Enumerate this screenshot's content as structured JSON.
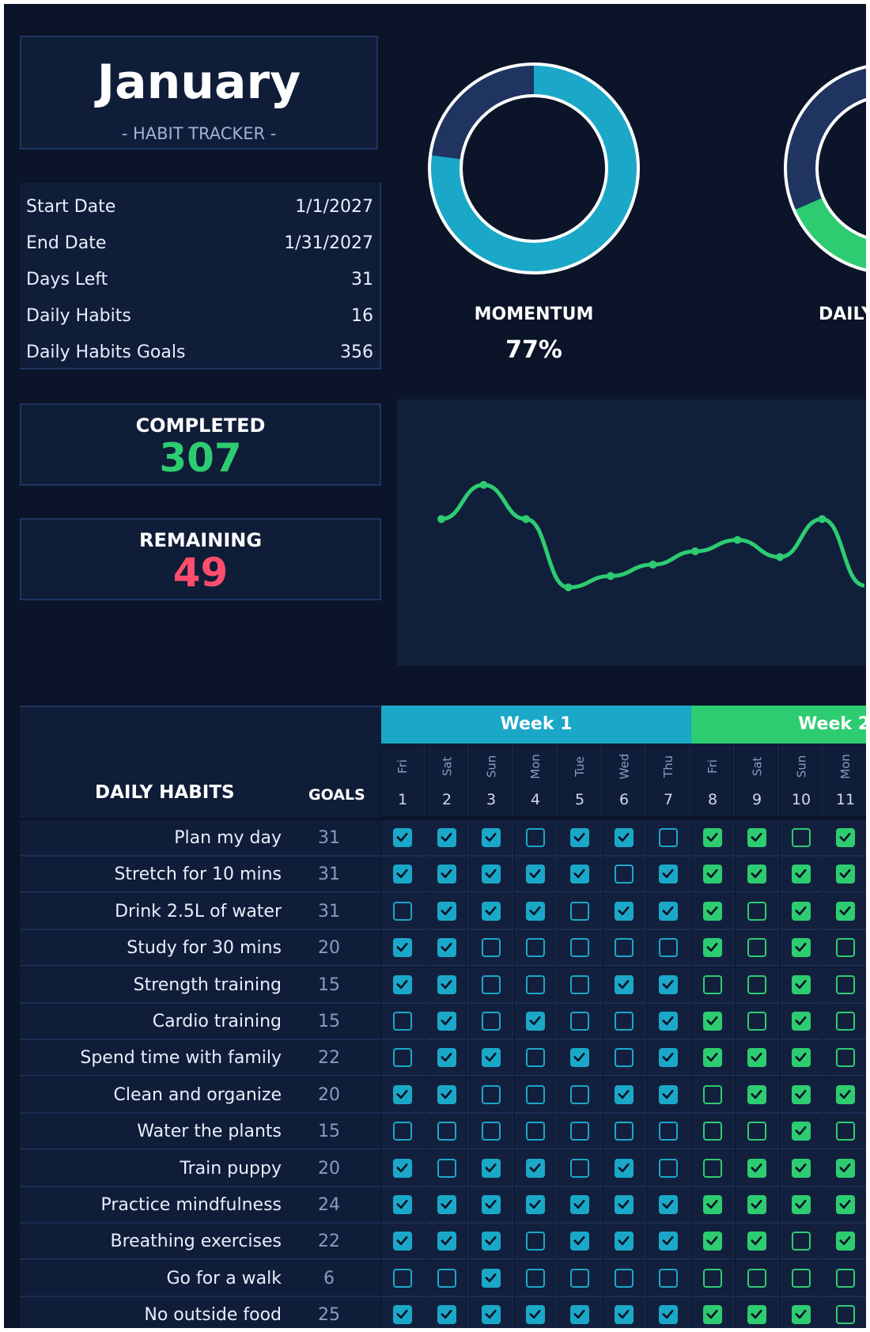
{
  "header": {
    "month": "January",
    "subtitle": "- HABIT TRACKER -"
  },
  "info": [
    {
      "label": "Start Date",
      "value": "1/1/2027"
    },
    {
      "label": "End Date",
      "value": "1/31/2027"
    },
    {
      "label": "Days Left",
      "value": "31"
    },
    {
      "label": "Daily Habits",
      "value": "16"
    },
    {
      "label": "Daily Habits Goals",
      "value": "356"
    }
  ],
  "stats": {
    "completed_label": "COMPLETED",
    "completed_value": "307",
    "remaining_label": "REMAINING",
    "remaining_value": "49"
  },
  "momentum": {
    "label": "MOMENTUM",
    "value": "77%",
    "fraction": 0.77
  },
  "daily": {
    "label": "DAILY"
  },
  "colors": {
    "bg": "#0b1428",
    "panel": "#0f1d38",
    "teal": "#1ba8c8",
    "green": "#2ecc71",
    "red": "#ff4d6d",
    "ring_track": "#1f3461"
  },
  "chart_data": {
    "type": "line",
    "x": [
      1,
      2,
      3,
      4,
      5,
      6,
      7,
      8,
      9,
      10,
      11
    ],
    "values": [
      0.62,
      0.8,
      0.62,
      0.26,
      0.32,
      0.38,
      0.45,
      0.51,
      0.42,
      0.62,
      0.27
    ],
    "grid": false
  },
  "table": {
    "habits_header": "DAILY HABITS",
    "goals_header": "GOALS",
    "weeks": [
      {
        "label": "Week 1",
        "color": "#1ba8c8"
      },
      {
        "label": "Week 2",
        "color": "#2ecc71"
      }
    ],
    "days": [
      {
        "name": "Fri",
        "num": "1",
        "week": 0
      },
      {
        "name": "Sat",
        "num": "2",
        "week": 0
      },
      {
        "name": "Sun",
        "num": "3",
        "week": 0
      },
      {
        "name": "Mon",
        "num": "4",
        "week": 0
      },
      {
        "name": "Tue",
        "num": "5",
        "week": 0
      },
      {
        "name": "Wed",
        "num": "6",
        "week": 0
      },
      {
        "name": "Thu",
        "num": "7",
        "week": 0
      },
      {
        "name": "Fri",
        "num": "8",
        "week": 1
      },
      {
        "name": "Sat",
        "num": "9",
        "week": 1
      },
      {
        "name": "Sun",
        "num": "10",
        "week": 1
      },
      {
        "name": "Mon",
        "num": "11",
        "week": 1
      }
    ],
    "habits": [
      {
        "name": "Plan my day",
        "goal": "31",
        "checks": [
          1,
          1,
          1,
          0,
          1,
          1,
          0,
          1,
          1,
          0,
          1
        ]
      },
      {
        "name": "Stretch for 10 mins",
        "goal": "31",
        "checks": [
          1,
          1,
          1,
          1,
          1,
          0,
          1,
          1,
          1,
          1,
          1
        ]
      },
      {
        "name": "Drink 2.5L of water",
        "goal": "31",
        "checks": [
          0,
          1,
          1,
          1,
          0,
          1,
          1,
          1,
          0,
          1,
          1
        ]
      },
      {
        "name": "Study for 30 mins",
        "goal": "20",
        "checks": [
          1,
          1,
          0,
          0,
          0,
          0,
          0,
          1,
          0,
          1,
          0
        ]
      },
      {
        "name": "Strength training",
        "goal": "15",
        "checks": [
          1,
          1,
          0,
          0,
          0,
          1,
          1,
          0,
          0,
          1,
          0
        ]
      },
      {
        "name": "Cardio training",
        "goal": "15",
        "checks": [
          0,
          1,
          0,
          1,
          0,
          0,
          1,
          1,
          0,
          1,
          0
        ]
      },
      {
        "name": "Spend time with family",
        "goal": "22",
        "checks": [
          0,
          1,
          1,
          0,
          1,
          0,
          1,
          1,
          1,
          1,
          0
        ]
      },
      {
        "name": "Clean and organize",
        "goal": "20",
        "checks": [
          1,
          1,
          0,
          0,
          0,
          1,
          1,
          0,
          1,
          1,
          1
        ]
      },
      {
        "name": "Water the plants",
        "goal": "15",
        "checks": [
          0,
          0,
          0,
          0,
          0,
          0,
          0,
          0,
          0,
          1,
          0
        ]
      },
      {
        "name": "Train puppy",
        "goal": "20",
        "checks": [
          1,
          0,
          1,
          1,
          0,
          1,
          0,
          0,
          1,
          1,
          1
        ]
      },
      {
        "name": "Practice mindfulness",
        "goal": "24",
        "checks": [
          1,
          1,
          1,
          1,
          1,
          1,
          1,
          1,
          1,
          1,
          1
        ]
      },
      {
        "name": "Breathing exercises",
        "goal": "22",
        "checks": [
          1,
          1,
          1,
          0,
          1,
          1,
          1,
          1,
          1,
          0,
          1
        ]
      },
      {
        "name": "Go for a walk",
        "goal": "6",
        "checks": [
          0,
          0,
          1,
          0,
          0,
          0,
          0,
          0,
          0,
          0,
          0
        ]
      },
      {
        "name": "No outside food",
        "goal": "25",
        "checks": [
          1,
          1,
          1,
          1,
          1,
          1,
          1,
          1,
          1,
          1,
          0
        ]
      }
    ]
  }
}
